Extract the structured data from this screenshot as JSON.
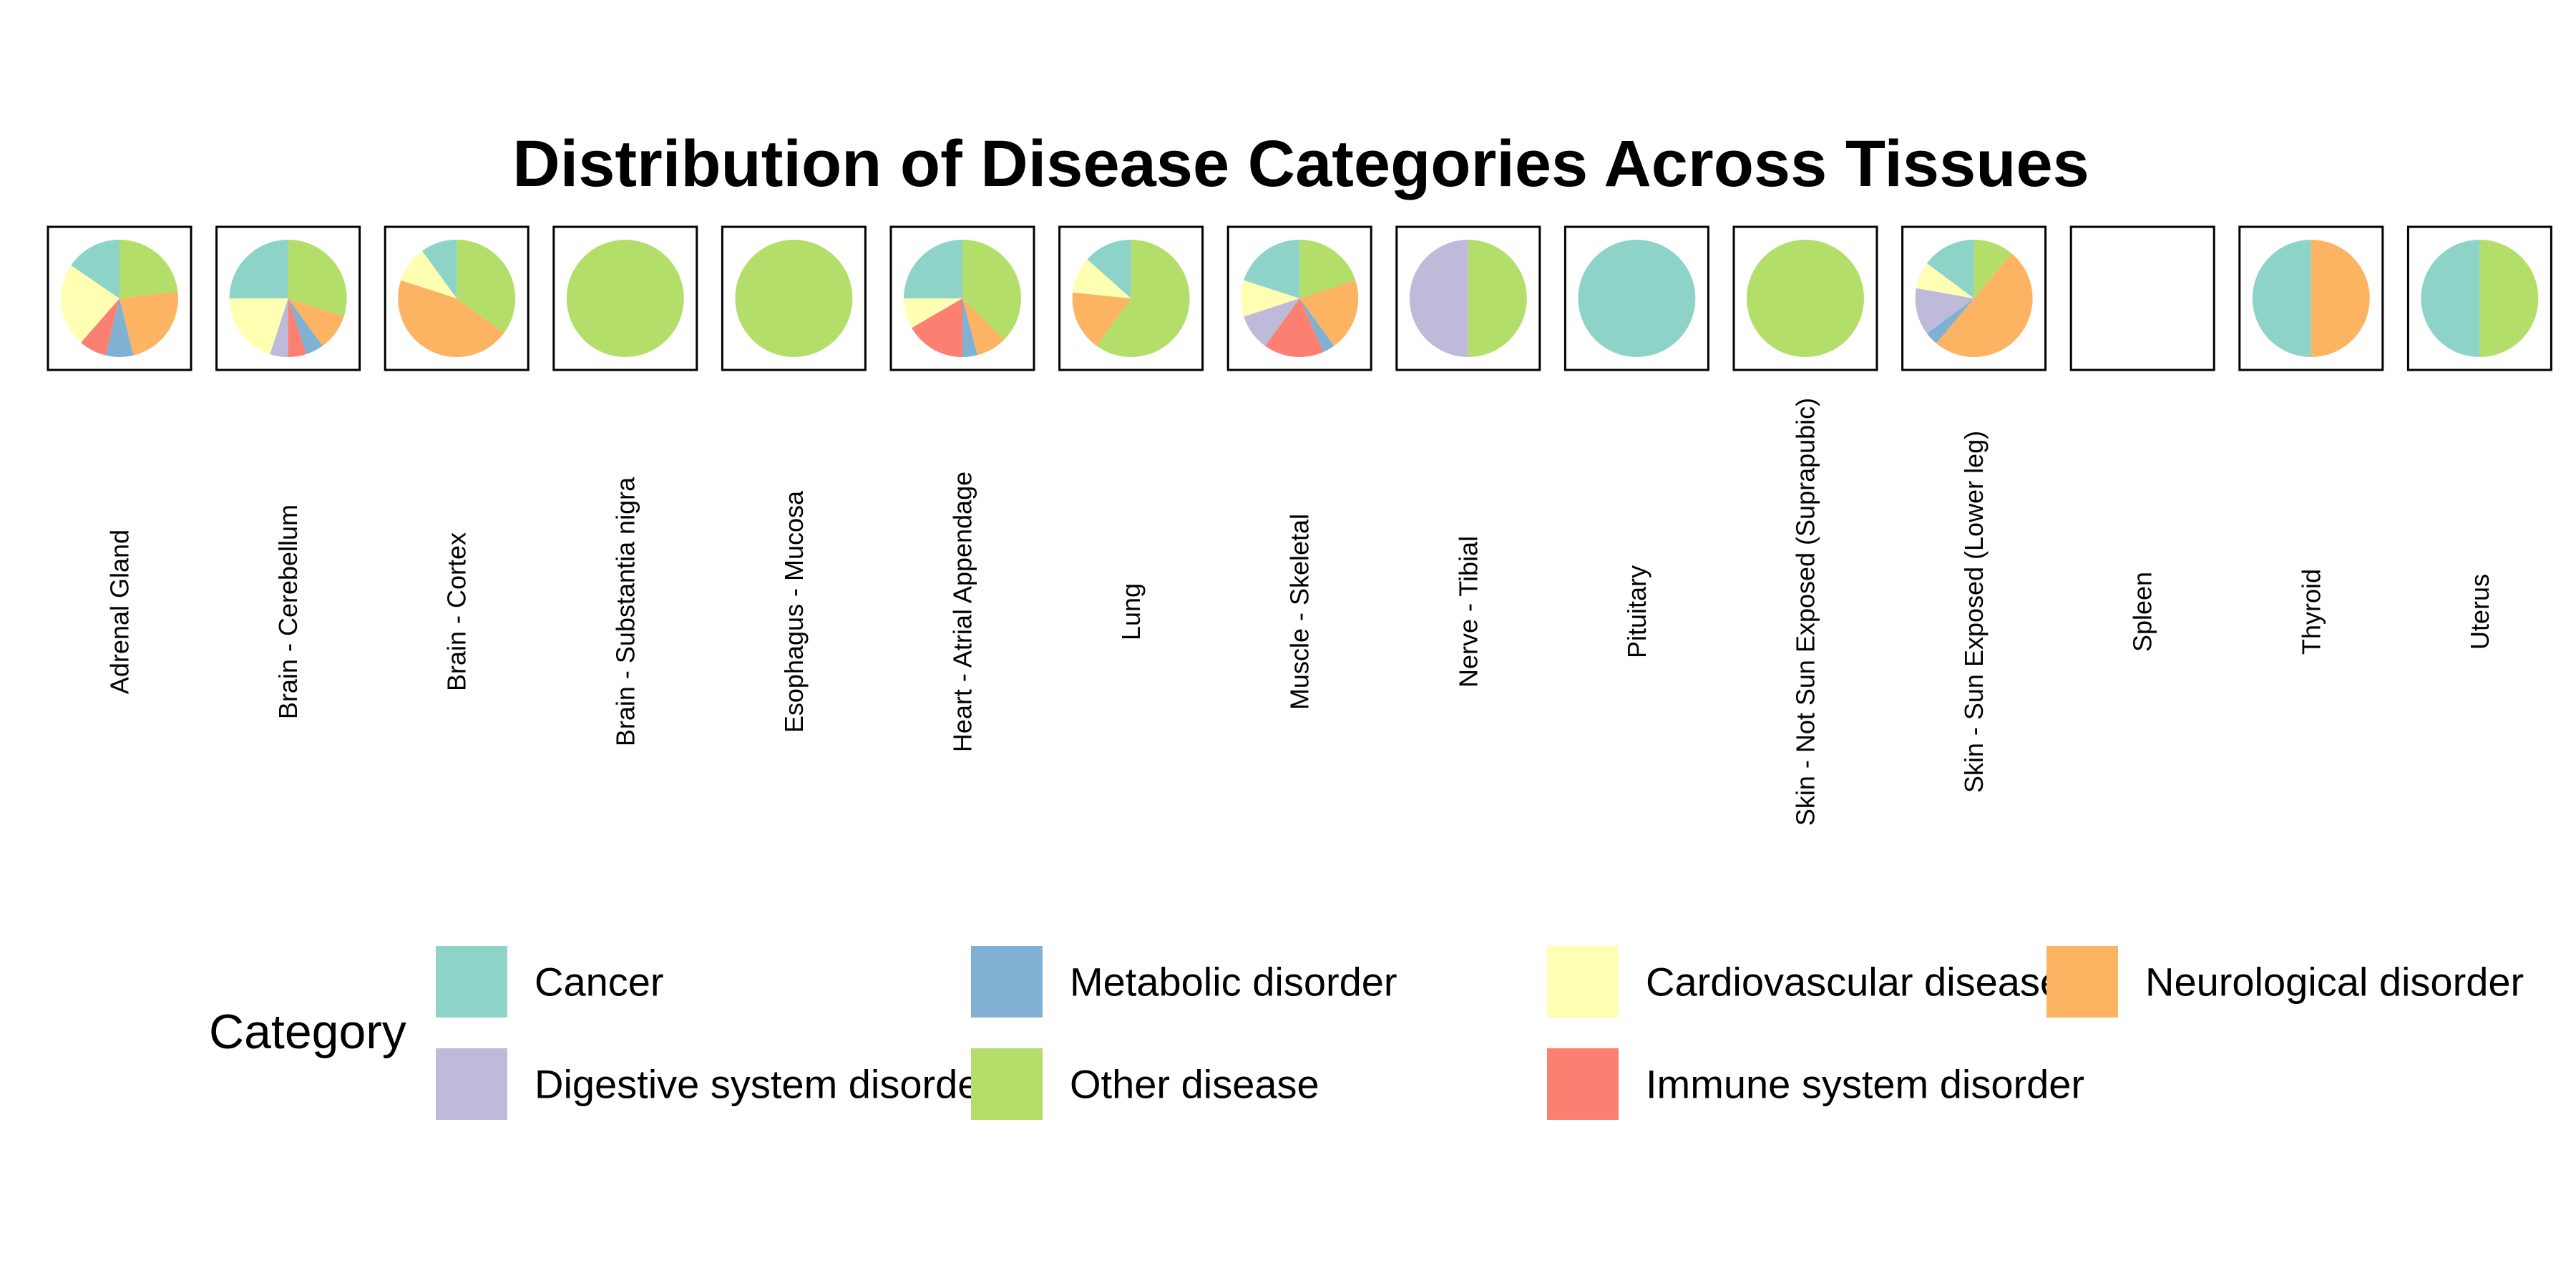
{
  "chart_data": {
    "type": "pie",
    "title": "Distribution of Disease Categories Across Tissues",
    "legend": {
      "title": "Category",
      "placement": "bottom"
    },
    "categories": [
      "Cancer",
      "Digestive system disorder",
      "Metabolic disorder",
      "Other disease",
      "Cardiovascular disease",
      "Immune system disorder",
      "Neurological disorder"
    ],
    "colors": {
      "Cancer": "#8DD3C7",
      "Cardiovascular disease": "#FFFFB3",
      "Digestive system disorder": "#BEBADA",
      "Immune system disorder": "#FB8072",
      "Metabolic disorder": "#80B1D3",
      "Neurological disorder": "#FDB462",
      "Other disease": "#B3DE69"
    },
    "slice_order": [
      "Other disease",
      "Neurological disorder",
      "Metabolic disorder",
      "Immune system disorder",
      "Digestive system disorder",
      "Cardiovascular disease",
      "Cancer"
    ],
    "tissues": [
      {
        "name": "Adrenal Gland",
        "values": {
          "Other disease": 1.0,
          "Neurological disorder": 1.0,
          "Metabolic disorder": 0.33,
          "Immune system disorder": 0.33,
          "Digestive system disorder": 0,
          "Cardiovascular disease": 1.0,
          "Cancer": 0.67
        }
      },
      {
        "name": "Brain - Cerebellum",
        "values": {
          "Other disease": 3,
          "Neurological disorder": 1,
          "Metabolic disorder": 0.5,
          "Immune system disorder": 0.5,
          "Digestive system disorder": 0.5,
          "Cardiovascular disease": 2,
          "Cancer": 2.5
        }
      },
      {
        "name": "Brain - Cortex",
        "values": {
          "Other disease": 3.5,
          "Neurological disorder": 4.5,
          "Metabolic disorder": 0,
          "Immune system disorder": 0,
          "Digestive system disorder": 0,
          "Cardiovascular disease": 1,
          "Cancer": 1
        }
      },
      {
        "name": "Brain - Substantia nigra",
        "values": {
          "Other disease": 1,
          "Neurological disorder": 0,
          "Metabolic disorder": 0,
          "Immune system disorder": 0,
          "Digestive system disorder": 0,
          "Cardiovascular disease": 0,
          "Cancer": 0
        }
      },
      {
        "name": "Esophagus - Mucosa",
        "values": {
          "Other disease": 1,
          "Neurological disorder": 0,
          "Metabolic disorder": 0,
          "Immune system disorder": 0,
          "Digestive system disorder": 0,
          "Cardiovascular disease": 0,
          "Cancer": 0
        }
      },
      {
        "name": "Heart - Atrial Appendage",
        "values": {
          "Other disease": 3,
          "Neurological disorder": 0.67,
          "Metabolic disorder": 0.33,
          "Immune system disorder": 1.33,
          "Digestive system disorder": 0,
          "Cardiovascular disease": 0.67,
          "Cancer": 2
        }
      },
      {
        "name": "Lung",
        "values": {
          "Other disease": 3.0,
          "Neurological disorder": 0.83,
          "Metabolic disorder": 0,
          "Immune system disorder": 0,
          "Digestive system disorder": 0,
          "Cardiovascular disease": 0.5,
          "Cancer": 0.67
        }
      },
      {
        "name": "Muscle - Skeletal",
        "values": {
          "Other disease": 1.5,
          "Neurological disorder": 1.5,
          "Metabolic disorder": 0.25,
          "Immune system disorder": 1.25,
          "Digestive system disorder": 0.75,
          "Cardiovascular disease": 0.75,
          "Cancer": 1.5
        }
      },
      {
        "name": "Nerve - Tibial",
        "values": {
          "Other disease": 1,
          "Neurological disorder": 0,
          "Metabolic disorder": 0,
          "Immune system disorder": 0,
          "Digestive system disorder": 1,
          "Cardiovascular disease": 0,
          "Cancer": 0
        }
      },
      {
        "name": "Pituitary",
        "values": {
          "Other disease": 0,
          "Neurological disorder": 0,
          "Metabolic disorder": 0,
          "Immune system disorder": 0,
          "Digestive system disorder": 0,
          "Cardiovascular disease": 0,
          "Cancer": 1
        }
      },
      {
        "name": "Skin - Not Sun Exposed (Suprapubic)",
        "values": {
          "Other disease": 1,
          "Neurological disorder": 0,
          "Metabolic disorder": 0,
          "Immune system disorder": 0,
          "Digestive system disorder": 0,
          "Cardiovascular disease": 0,
          "Cancer": 0
        }
      },
      {
        "name": "Skin - Sun Exposed (Lower leg)",
        "values": {
          "Other disease": 1.0,
          "Neurological disorder": 4.5,
          "Metabolic disorder": 0.33,
          "Immune system disorder": 0,
          "Digestive system disorder": 1.17,
          "Cardiovascular disease": 0.67,
          "Cancer": 1.33
        }
      },
      {
        "name": "Spleen",
        "values": {
          "Other disease": 0,
          "Neurological disorder": 0,
          "Metabolic disorder": 0,
          "Immune system disorder": 0,
          "Digestive system disorder": 0,
          "Cardiovascular disease": 0,
          "Cancer": 0
        }
      },
      {
        "name": "Thyroid",
        "values": {
          "Other disease": 0,
          "Neurological disorder": 1,
          "Metabolic disorder": 0,
          "Immune system disorder": 0,
          "Digestive system disorder": 0,
          "Cardiovascular disease": 0,
          "Cancer": 1
        }
      },
      {
        "name": "Uterus",
        "values": {
          "Other disease": 1,
          "Neurological disorder": 0,
          "Metabolic disorder": 0,
          "Immune system disorder": 0,
          "Digestive system disorder": 0,
          "Cardiovascular disease": 0,
          "Cancer": 1
        }
      }
    ]
  }
}
